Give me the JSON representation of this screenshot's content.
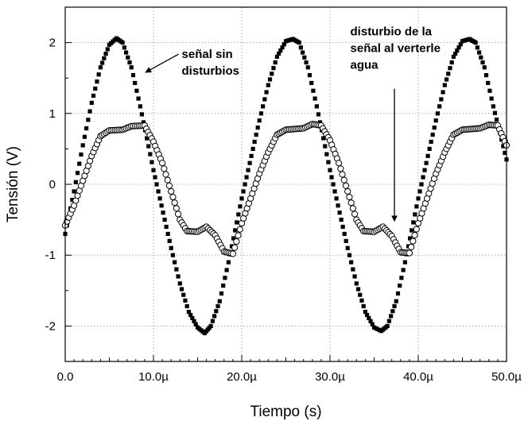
{
  "chart_data": {
    "type": "scatter",
    "xlabel": "Tiempo (s)",
    "ylabel": "Tensión (V)",
    "xlim": [
      0,
      50
    ],
    "ylim": [
      -2.5,
      2.5
    ],
    "x_unit": "µs",
    "x_ticks": [
      0,
      10,
      20,
      30,
      40,
      50
    ],
    "x_tick_labels": [
      "0.0",
      "10.0µ",
      "20.0µ",
      "30.0µ",
      "40.0µ",
      "50.0µ"
    ],
    "y_ticks": [
      -2,
      -1,
      0,
      1,
      2
    ],
    "y_tick_labels": [
      "-2",
      "-1",
      "0",
      "1",
      "2"
    ],
    "grid": true,
    "colors": {
      "series": "#000000",
      "grid": "#9a9a9a"
    },
    "series": [
      {
        "marker": "filled-square",
        "period_us": 20,
        "amplitude_v": 2.07,
        "first_peak_x_us": 5.8,
        "points": [
          [
            0.0,
            -0.7
          ],
          [
            1.0,
            -0.1
          ],
          [
            2.0,
            0.55
          ],
          [
            3.0,
            1.15
          ],
          [
            4.0,
            1.65
          ],
          [
            5.0,
            1.97
          ],
          [
            5.8,
            2.06
          ],
          [
            6.5,
            2.0
          ],
          [
            7.5,
            1.65
          ],
          [
            8.5,
            1.1
          ],
          [
            10.0,
            0.2
          ],
          [
            12.0,
            -0.9
          ],
          [
            13.0,
            -1.4
          ],
          [
            14.0,
            -1.8
          ],
          [
            15.0,
            -2.02
          ],
          [
            15.8,
            -2.1
          ],
          [
            16.5,
            -2.0
          ],
          [
            17.5,
            -1.65
          ],
          [
            18.5,
            -1.1
          ],
          [
            20.0,
            -0.2
          ],
          [
            22.0,
            0.9
          ],
          [
            23.0,
            1.4
          ],
          [
            24.0,
            1.8
          ],
          [
            25.0,
            2.02
          ],
          [
            25.8,
            2.05
          ],
          [
            26.5,
            2.0
          ],
          [
            27.5,
            1.65
          ],
          [
            28.5,
            1.1
          ],
          [
            30.0,
            0.2
          ],
          [
            32.0,
            -0.9
          ],
          [
            33.0,
            -1.4
          ],
          [
            34.0,
            -1.8
          ],
          [
            35.0,
            -2.02
          ],
          [
            35.8,
            -2.07
          ],
          [
            36.5,
            -2.0
          ],
          [
            37.5,
            -1.65
          ],
          [
            38.5,
            -1.1
          ],
          [
            40.0,
            -0.2
          ],
          [
            42.0,
            0.9
          ],
          [
            43.0,
            1.4
          ],
          [
            44.0,
            1.8
          ],
          [
            45.0,
            2.02
          ],
          [
            45.8,
            2.05
          ],
          [
            46.5,
            2.0
          ],
          [
            47.5,
            1.65
          ],
          [
            48.5,
            1.1
          ],
          [
            50.0,
            0.35
          ]
        ]
      },
      {
        "marker": "open-circle",
        "points": [
          [
            0.0,
            -0.58
          ],
          [
            1.0,
            -0.3
          ],
          [
            2.0,
            0.05
          ],
          [
            3.0,
            0.4
          ],
          [
            4.0,
            0.68
          ],
          [
            5.0,
            0.76
          ],
          [
            6.5,
            0.77
          ],
          [
            7.5,
            0.82
          ],
          [
            9.0,
            0.83
          ],
          [
            10.0,
            0.6
          ],
          [
            11.0,
            0.3
          ],
          [
            12.0,
            -0.1
          ],
          [
            13.0,
            -0.5
          ],
          [
            13.8,
            -0.66
          ],
          [
            15.0,
            -0.67
          ],
          [
            16.0,
            -0.6
          ],
          [
            17.0,
            -0.72
          ],
          [
            18.0,
            -0.95
          ],
          [
            19.0,
            -0.98
          ],
          [
            20.0,
            -0.55
          ],
          [
            21.0,
            -0.2
          ],
          [
            22.0,
            0.15
          ],
          [
            23.0,
            0.45
          ],
          [
            24.0,
            0.7
          ],
          [
            25.0,
            0.77
          ],
          [
            27.0,
            0.79
          ],
          [
            28.0,
            0.85
          ],
          [
            29.0,
            0.83
          ],
          [
            30.0,
            0.62
          ],
          [
            31.0,
            0.3
          ],
          [
            32.0,
            -0.1
          ],
          [
            33.0,
            -0.5
          ],
          [
            33.8,
            -0.66
          ],
          [
            35.0,
            -0.67
          ],
          [
            36.0,
            -0.6
          ],
          [
            37.0,
            -0.73
          ],
          [
            38.0,
            -0.96
          ],
          [
            39.0,
            -0.97
          ],
          [
            40.0,
            -0.55
          ],
          [
            41.0,
            -0.2
          ],
          [
            42.0,
            0.15
          ],
          [
            43.0,
            0.45
          ],
          [
            44.0,
            0.7
          ],
          [
            45.0,
            0.77
          ],
          [
            47.0,
            0.79
          ],
          [
            48.0,
            0.84
          ],
          [
            49.0,
            0.83
          ],
          [
            50.0,
            0.55
          ]
        ]
      }
    ],
    "annotations": [
      {
        "lines": [
          "señal sin",
          "disturbios"
        ],
        "x": 13.2,
        "y": 1.78,
        "arrow_to": [
          9.1,
          1.58
        ]
      },
      {
        "lines": [
          "disturbio de la",
          "señal al verterle",
          "agua"
        ],
        "x": 32.3,
        "y": 2.1,
        "arrow_from": [
          37.3,
          1.35
        ],
        "arrow_to": [
          37.3,
          -0.52
        ]
      }
    ]
  }
}
